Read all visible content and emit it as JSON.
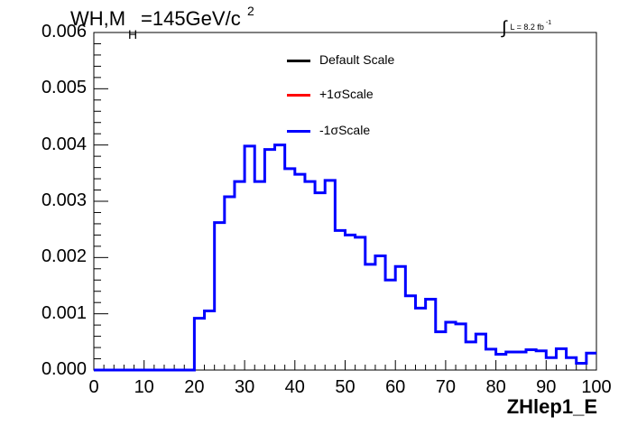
{
  "title": {
    "prefix": "WH,M",
    "subscript": "H",
    "rest": "=145GeV/c",
    "superscript": "2"
  },
  "luminosity": {
    "label": "L = 8.2 fb",
    "exponent": "-1"
  },
  "legend": [
    {
      "label": "Default Scale",
      "color": "#000000"
    },
    {
      "label": "+1σScale",
      "color": "#ff0000"
    },
    {
      "label": "-1σScale",
      "color": "#0000ff"
    }
  ],
  "chart_data": {
    "type": "line",
    "style": "step-histogram",
    "xlabel": "ZHlep1_E",
    "xlim": [
      0,
      100
    ],
    "ylim": [
      0,
      0.006
    ],
    "x_ticks": [
      "0",
      "10",
      "20",
      "30",
      "40",
      "50",
      "60",
      "70",
      "80",
      "90",
      "100"
    ],
    "y_ticks": [
      "0.000",
      "0.001",
      "0.002",
      "0.003",
      "0.004",
      "0.005",
      "0.006"
    ],
    "bin_width": 2,
    "bin_edges_start": 0,
    "series": [
      {
        "name": "-1σScale",
        "color": "#0000ff",
        "values": [
          0,
          0,
          0,
          0,
          0,
          0,
          0,
          0,
          0,
          0,
          0.00092,
          0.00105,
          0.00262,
          0.00308,
          0.00335,
          0.00398,
          0.00335,
          0.00392,
          0.004,
          0.00358,
          0.00348,
          0.00335,
          0.00315,
          0.00337,
          0.00248,
          0.0024,
          0.00236,
          0.00188,
          0.00203,
          0.0016,
          0.00184,
          0.00132,
          0.0011,
          0.00126,
          0.00068,
          0.00085,
          0.00082,
          0.0005,
          0.00064,
          0.00037,
          0.00028,
          0.00032,
          0.00032,
          0.00036,
          0.00034,
          0.00022,
          0.00038,
          0.00022,
          0.00012,
          0.0003
        ]
      }
    ]
  }
}
